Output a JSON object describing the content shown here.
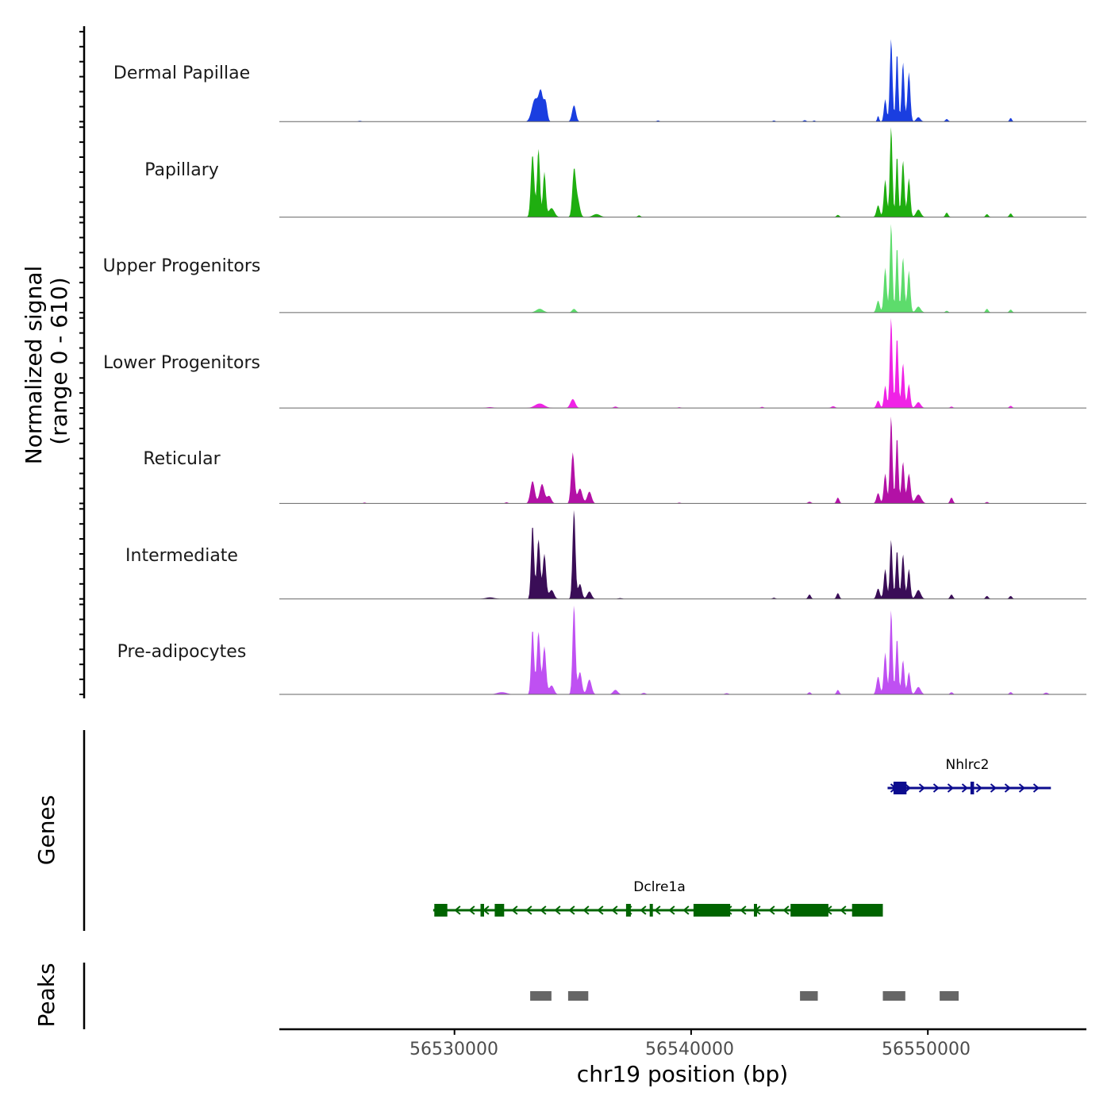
{
  "chart_data": {
    "type": "area",
    "title": "",
    "ylabel_line1": "Normalized signal",
    "ylabel_line2": "(range 0 - 610)",
    "ylim": [
      0,
      610
    ],
    "xlabel": "chr19 position (bp)",
    "xlim": [
      56522600,
      56556700
    ],
    "xticks": [
      56530000,
      56540000,
      56550000
    ],
    "xtick_labels": [
      "56530000",
      "56540000",
      "56550000"
    ],
    "coverage_tracks": [
      {
        "name": "Dermal Papillae",
        "color": "#1a3ee0",
        "peaks": [
          [
            56526000,
            6,
            60
          ],
          [
            56533400,
            150,
            130
          ],
          [
            56533650,
            190,
            90
          ],
          [
            56533850,
            130,
            70
          ],
          [
            56535050,
            110,
            80
          ],
          [
            56538600,
            8,
            60
          ],
          [
            56543500,
            8,
            50
          ],
          [
            56544800,
            10,
            60
          ],
          [
            56545200,
            8,
            50
          ],
          [
            56547900,
            40,
            40
          ],
          [
            56548200,
            150,
            55
          ],
          [
            56548450,
            560,
            55
          ],
          [
            56548700,
            470,
            50
          ],
          [
            56548950,
            400,
            55
          ],
          [
            56549200,
            330,
            60
          ],
          [
            56549600,
            30,
            90
          ],
          [
            56550800,
            18,
            60
          ],
          [
            56553500,
            25,
            50
          ]
        ]
      },
      {
        "name": "Papillary",
        "color": "#1fae10",
        "peaks": [
          [
            56533300,
            420,
            70
          ],
          [
            56533550,
            460,
            60
          ],
          [
            56533800,
            300,
            60
          ],
          [
            56534100,
            60,
            120
          ],
          [
            56535050,
            300,
            70
          ],
          [
            56535200,
            120,
            90
          ],
          [
            56536000,
            20,
            150
          ],
          [
            56537800,
            12,
            60
          ],
          [
            56546200,
            15,
            60
          ],
          [
            56547900,
            80,
            70
          ],
          [
            56548200,
            250,
            60
          ],
          [
            56548450,
            610,
            55
          ],
          [
            56548700,
            420,
            50
          ],
          [
            56548950,
            380,
            60
          ],
          [
            56549200,
            260,
            60
          ],
          [
            56549600,
            50,
            100
          ],
          [
            56550800,
            30,
            60
          ],
          [
            56552500,
            20,
            60
          ],
          [
            56553500,
            25,
            60
          ]
        ]
      },
      {
        "name": "Upper Progenitors",
        "color": "#5ddc6c",
        "peaks": [
          [
            56533600,
            25,
            150
          ],
          [
            56535050,
            25,
            80
          ],
          [
            56547900,
            80,
            70
          ],
          [
            56548200,
            300,
            60
          ],
          [
            56548450,
            600,
            55
          ],
          [
            56548700,
            450,
            50
          ],
          [
            56548950,
            370,
            60
          ],
          [
            56549200,
            280,
            60
          ],
          [
            56549600,
            40,
            100
          ],
          [
            56550800,
            12,
            60
          ],
          [
            56552500,
            25,
            60
          ],
          [
            56553500,
            20,
            60
          ]
        ]
      },
      {
        "name": "Lower Progenitors",
        "color": "#f022e6",
        "peaks": [
          [
            56531500,
            6,
            150
          ],
          [
            56533600,
            30,
            200
          ],
          [
            56535000,
            60,
            100
          ],
          [
            56536800,
            10,
            80
          ],
          [
            56539500,
            6,
            60
          ],
          [
            56543000,
            8,
            60
          ],
          [
            56546000,
            12,
            80
          ],
          [
            56547900,
            50,
            70
          ],
          [
            56548200,
            150,
            55
          ],
          [
            56548450,
            610,
            55
          ],
          [
            56548700,
            480,
            55
          ],
          [
            56548950,
            300,
            60
          ],
          [
            56549200,
            160,
            60
          ],
          [
            56549600,
            40,
            100
          ],
          [
            56551000,
            10,
            60
          ],
          [
            56553500,
            15,
            60
          ]
        ]
      },
      {
        "name": "Reticular",
        "color": "#b311a6",
        "peaks": [
          [
            56526200,
            6,
            60
          ],
          [
            56532200,
            8,
            60
          ],
          [
            56533300,
            150,
            90
          ],
          [
            56533700,
            130,
            100
          ],
          [
            56534000,
            50,
            90
          ],
          [
            56535000,
            340,
            70
          ],
          [
            56535300,
            100,
            100
          ],
          [
            56535700,
            80,
            90
          ],
          [
            56539500,
            6,
            60
          ],
          [
            56545000,
            12,
            70
          ],
          [
            56546200,
            40,
            60
          ],
          [
            56547900,
            70,
            70
          ],
          [
            56548200,
            200,
            60
          ],
          [
            56548450,
            590,
            55
          ],
          [
            56548700,
            450,
            55
          ],
          [
            56548950,
            280,
            60
          ],
          [
            56549200,
            200,
            70
          ],
          [
            56549600,
            60,
            120
          ],
          [
            56551000,
            40,
            60
          ],
          [
            56552500,
            10,
            60
          ]
        ]
      },
      {
        "name": "Intermediate",
        "color": "#3a0d57",
        "peaks": [
          [
            56531500,
            10,
            200
          ],
          [
            56533300,
            500,
            60
          ],
          [
            56533550,
            400,
            70
          ],
          [
            56533800,
            300,
            70
          ],
          [
            56534100,
            60,
            100
          ],
          [
            56535050,
            600,
            60
          ],
          [
            56535300,
            100,
            80
          ],
          [
            56535700,
            50,
            90
          ],
          [
            56537000,
            6,
            80
          ],
          [
            56543500,
            8,
            60
          ],
          [
            56545000,
            30,
            60
          ],
          [
            56546200,
            40,
            60
          ],
          [
            56547900,
            70,
            70
          ],
          [
            56548200,
            200,
            60
          ],
          [
            56548450,
            400,
            55
          ],
          [
            56548700,
            330,
            55
          ],
          [
            56548950,
            300,
            60
          ],
          [
            56549200,
            200,
            60
          ],
          [
            56549600,
            60,
            100
          ],
          [
            56551000,
            30,
            60
          ],
          [
            56552500,
            20,
            60
          ],
          [
            56553500,
            20,
            60
          ]
        ]
      },
      {
        "name": "Pre-adipocytes",
        "color": "#bf50f2",
        "peaks": [
          [
            56532000,
            15,
            200
          ],
          [
            56533300,
            440,
            60
          ],
          [
            56533550,
            420,
            70
          ],
          [
            56533800,
            320,
            70
          ],
          [
            56534100,
            60,
            100
          ],
          [
            56535050,
            600,
            60
          ],
          [
            56535300,
            150,
            80
          ],
          [
            56535700,
            100,
            90
          ],
          [
            56536800,
            30,
            100
          ],
          [
            56538000,
            10,
            80
          ],
          [
            56541500,
            8,
            80
          ],
          [
            56545000,
            15,
            60
          ],
          [
            56546200,
            30,
            60
          ],
          [
            56547900,
            120,
            70
          ],
          [
            56548200,
            280,
            60
          ],
          [
            56548450,
            570,
            55
          ],
          [
            56548700,
            380,
            55
          ],
          [
            56548950,
            230,
            60
          ],
          [
            56549200,
            150,
            60
          ],
          [
            56549600,
            50,
            100
          ],
          [
            56551000,
            15,
            60
          ],
          [
            56553500,
            15,
            60
          ],
          [
            56555000,
            12,
            80
          ]
        ]
      }
    ],
    "genes_label": "Genes",
    "genes": [
      {
        "name": "Nhlrc2",
        "color": "#0c0c8f",
        "strand": "+",
        "start": 56548300,
        "end": 56555200,
        "exons": [
          [
            56548550,
            56549100
          ],
          [
            56551800,
            56551950
          ]
        ]
      },
      {
        "name": "Dclre1a",
        "color": "#006400",
        "strand": "-",
        "start": 56529100,
        "end": 56548100,
        "exons": [
          [
            56529150,
            56529700
          ],
          [
            56531100,
            56531250
          ],
          [
            56531700,
            56532100
          ],
          [
            56537250,
            56537450
          ],
          [
            56538250,
            56538350
          ],
          [
            56540100,
            56541650
          ],
          [
            56542650,
            56542750
          ],
          [
            56544200,
            56545800
          ],
          [
            56546800,
            56548100
          ]
        ]
      }
    ],
    "peaks_label": "Peaks",
    "peak_color": "#666666",
    "peak_regions": [
      [
        56533200,
        56534100
      ],
      [
        56534800,
        56535650
      ],
      [
        56544600,
        56545350
      ],
      [
        56548100,
        56549050
      ],
      [
        56550500,
        56551300
      ]
    ]
  }
}
